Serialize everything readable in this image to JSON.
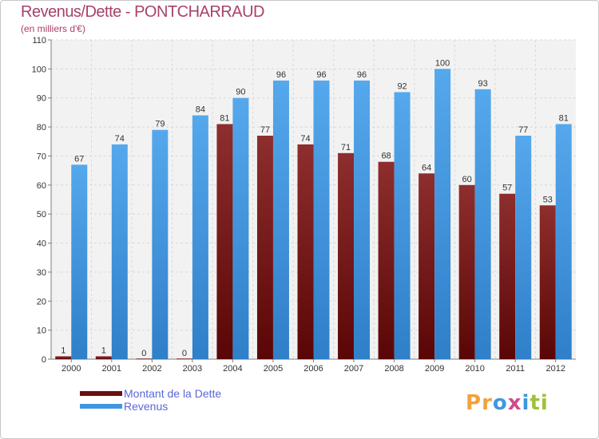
{
  "header": {
    "title": "Revenus/Dette - PONTCHARRAUD",
    "subtitle": "(en milliers d'€)"
  },
  "legend": {
    "items": [
      {
        "label": "Montant de la Dette",
        "color": "#6b0f0f"
      },
      {
        "label": "Revenus",
        "color": "#3f97df"
      }
    ]
  },
  "logo": {
    "text": "Proxiti",
    "letters": [
      "P",
      "r",
      "o",
      "x",
      "i",
      "t",
      "i"
    ],
    "colors": [
      "#f2a23b",
      "#f2a23b",
      "#3f97df",
      "#d04b8b",
      "#3f97df",
      "#9ec23c",
      "#9ec23c"
    ]
  },
  "chart_data": {
    "type": "bar",
    "title": "Revenus/Dette - PONTCHARRAUD",
    "ylabel": "(en milliers d'€)",
    "xlabel": "",
    "ylim": [
      0,
      110
    ],
    "yticks": [
      0,
      10,
      20,
      30,
      40,
      50,
      60,
      70,
      80,
      90,
      100,
      110
    ],
    "grid": true,
    "legend_position": "bottom-left",
    "categories": [
      "2000",
      "2001",
      "2002",
      "2003",
      "2004",
      "2005",
      "2006",
      "2007",
      "2008",
      "2009",
      "2010",
      "2011",
      "2012"
    ],
    "series": [
      {
        "name": "Montant de la Dette",
        "color": "#7a1a1a",
        "values": [
          1,
          1,
          0,
          0,
          81,
          77,
          74,
          71,
          68,
          64,
          60,
          57,
          53
        ]
      },
      {
        "name": "Revenus",
        "color": "#3f97df",
        "values": [
          67,
          74,
          79,
          84,
          90,
          96,
          96,
          96,
          92,
          100,
          93,
          77,
          81
        ]
      }
    ]
  }
}
